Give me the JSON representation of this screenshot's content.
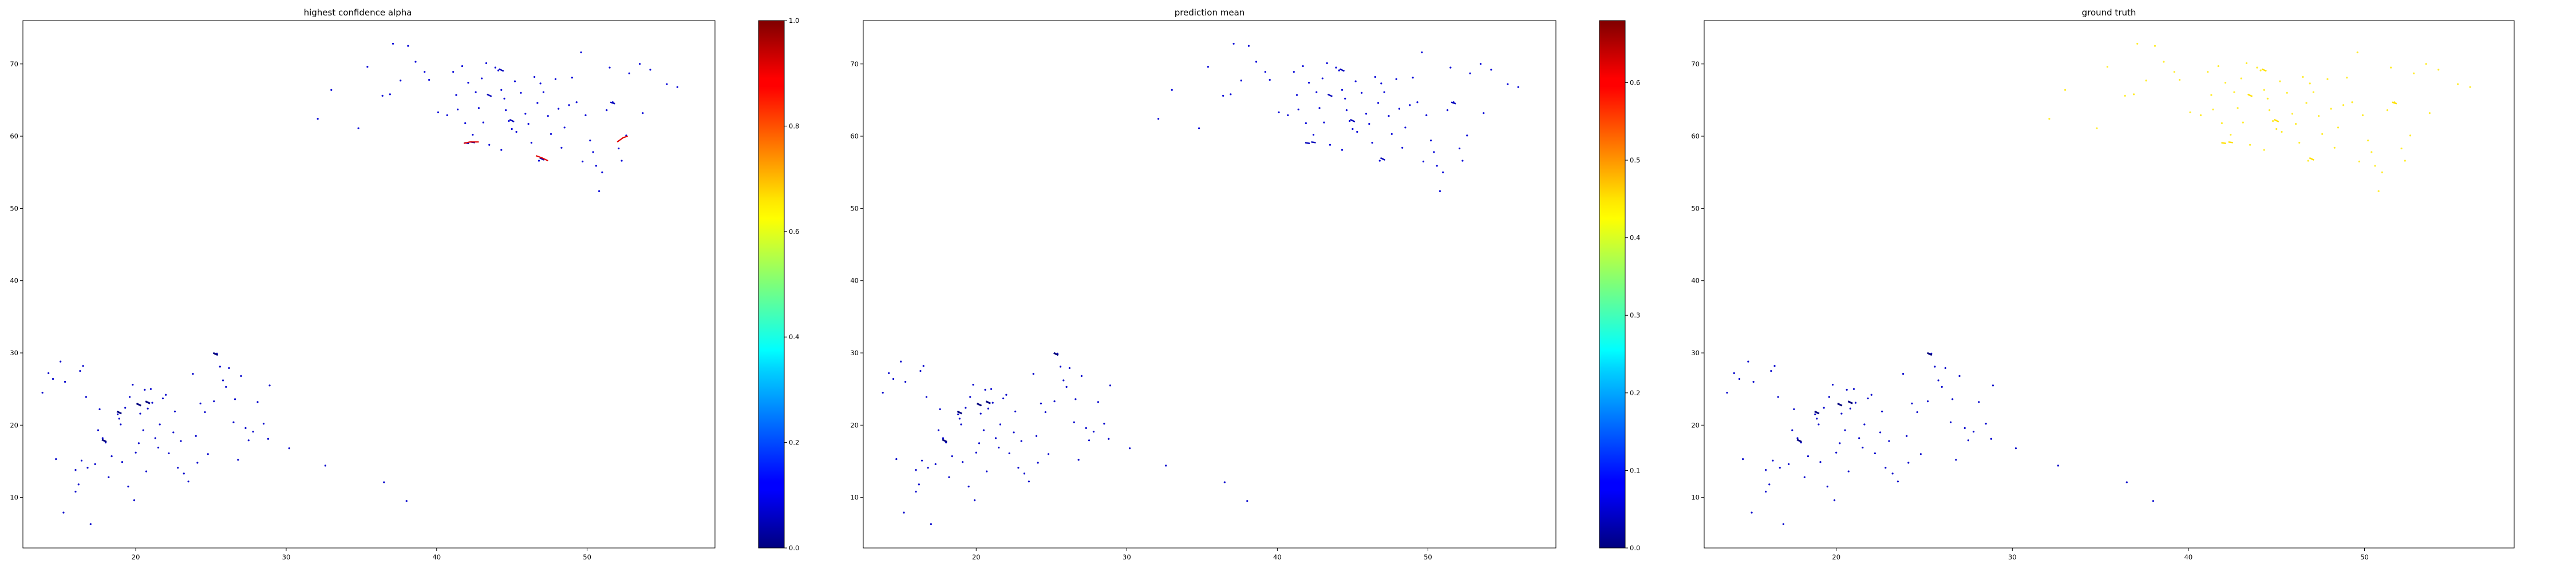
{
  "chart_data": [
    {
      "type": "scatter",
      "title": "highest confidence alpha",
      "xlabel": "",
      "ylabel": "",
      "xlim": [
        12.5,
        58.5
      ],
      "ylim": [
        3,
        76
      ],
      "xticks": [
        20,
        30,
        40,
        50
      ],
      "yticks": [
        10,
        20,
        30,
        40,
        50,
        60,
        70
      ],
      "colormap": "jet",
      "color_mode": "alpha",
      "colorbar": {
        "vmin": 0.0,
        "vmax": 1.0,
        "ticks": [
          "0.0",
          "0.2",
          "0.4",
          "0.6",
          "0.8",
          "1.0"
        ]
      }
    },
    {
      "type": "scatter",
      "title": "prediction mean",
      "xlabel": "",
      "ylabel": "",
      "xlim": [
        12.5,
        58.5
      ],
      "ylim": [
        3,
        76
      ],
      "xticks": [
        20,
        30,
        40,
        50
      ],
      "yticks": [
        10,
        20,
        30,
        40,
        50,
        60,
        70
      ],
      "colormap": "jet",
      "color_mode": "mean",
      "colorbar": {
        "vmin": 0.0,
        "vmax": 0.68,
        "ticks": [
          "0.0",
          "0.1",
          "0.2",
          "0.3",
          "0.4",
          "0.5",
          "0.6"
        ]
      }
    },
    {
      "type": "scatter",
      "title": "ground truth",
      "xlabel": "",
      "ylabel": "",
      "xlim": [
        12.5,
        58.5
      ],
      "ylim": [
        3,
        76
      ],
      "xticks": [
        20,
        30,
        40,
        50
      ],
      "yticks": [
        10,
        20,
        30,
        40,
        50,
        60,
        70
      ],
      "colormap": "jet",
      "color_mode": "truth"
    }
  ],
  "points": {
    "lower_cluster": [
      [
        13.8,
        24.5
      ],
      [
        14.2,
        27.2
      ],
      [
        14.5,
        26.4
      ],
      [
        14.7,
        15.3
      ],
      [
        15.0,
        28.8
      ],
      [
        15.3,
        26.0
      ],
      [
        15.2,
        7.9
      ],
      [
        16.0,
        10.8
      ],
      [
        16.2,
        11.8
      ],
      [
        16.0,
        13.8
      ],
      [
        16.4,
        15.1
      ],
      [
        16.5,
        28.2
      ],
      [
        16.3,
        27.5
      ],
      [
        16.7,
        23.9
      ],
      [
        16.8,
        14.1
      ],
      [
        17.0,
        6.3
      ],
      [
        17.3,
        14.6
      ],
      [
        17.6,
        22.2
      ],
      [
        17.8,
        18.2
      ],
      [
        18.0,
        17.6
      ],
      [
        18.2,
        12.8
      ],
      [
        18.4,
        15.7
      ],
      [
        18.8,
        21.5
      ],
      [
        18.9,
        20.9
      ],
      [
        19.0,
        20.1
      ],
      [
        19.3,
        22.4
      ],
      [
        19.5,
        11.5
      ],
      [
        19.6,
        23.9
      ],
      [
        19.8,
        25.6
      ],
      [
        19.9,
        9.6
      ],
      [
        20.0,
        16.2
      ],
      [
        20.2,
        17.5
      ],
      [
        20.3,
        21.6
      ],
      [
        20.5,
        19.3
      ],
      [
        20.6,
        24.9
      ],
      [
        20.7,
        13.6
      ],
      [
        20.8,
        22.3
      ],
      [
        21.0,
        25.0
      ],
      [
        21.1,
        23.1
      ],
      [
        21.3,
        18.2
      ],
      [
        21.5,
        16.9
      ],
      [
        21.6,
        20.1
      ],
      [
        21.8,
        23.7
      ],
      [
        22.0,
        24.2
      ],
      [
        22.2,
        16.1
      ],
      [
        22.5,
        19.0
      ],
      [
        22.8,
        14.1
      ],
      [
        23.0,
        17.8
      ],
      [
        23.2,
        13.3
      ],
      [
        23.5,
        12.2
      ],
      [
        23.8,
        27.1
      ],
      [
        24.0,
        18.5
      ],
      [
        24.3,
        23.0
      ],
      [
        24.6,
        21.8
      ],
      [
        24.8,
        16.0
      ],
      [
        25.2,
        23.3
      ],
      [
        25.4,
        29.9
      ],
      [
        25.6,
        28.1
      ],
      [
        25.8,
        26.2
      ],
      [
        26.0,
        25.3
      ],
      [
        26.2,
        27.9
      ],
      [
        26.5,
        20.4
      ],
      [
        26.6,
        23.6
      ],
      [
        26.8,
        15.2
      ],
      [
        27.0,
        26.8
      ],
      [
        27.3,
        19.6
      ],
      [
        27.5,
        17.9
      ],
      [
        27.8,
        19.1
      ],
      [
        28.1,
        23.2
      ],
      [
        28.5,
        20.2
      ],
      [
        28.9,
        25.5
      ],
      [
        28.8,
        18.1
      ],
      [
        30.2,
        16.8
      ],
      [
        32.6,
        14.4
      ],
      [
        36.5,
        12.1
      ],
      [
        38.0,
        9.5
      ],
      [
        17.5,
        19.3
      ],
      [
        19.1,
        14.9
      ],
      [
        22.6,
        21.9
      ],
      [
        24.1,
        14.8
      ]
    ],
    "upper_cluster": [
      [
        32.1,
        62.4
      ],
      [
        33.0,
        66.4
      ],
      [
        34.8,
        61.1
      ],
      [
        35.4,
        69.6
      ],
      [
        36.4,
        65.6
      ],
      [
        36.9,
        65.8
      ],
      [
        37.1,
        72.8
      ],
      [
        37.6,
        67.7
      ],
      [
        38.1,
        72.5
      ],
      [
        38.6,
        70.3
      ],
      [
        39.2,
        68.9
      ],
      [
        39.5,
        67.8
      ],
      [
        40.1,
        63.3
      ],
      [
        40.7,
        62.9
      ],
      [
        41.1,
        68.9
      ],
      [
        41.3,
        65.7
      ],
      [
        41.4,
        63.7
      ],
      [
        41.7,
        69.7
      ],
      [
        41.9,
        61.8
      ],
      [
        42.1,
        67.4
      ],
      [
        42.4,
        60.2
      ],
      [
        42.6,
        66.1
      ],
      [
        42.8,
        63.9
      ],
      [
        43.0,
        68.0
      ],
      [
        43.3,
        70.1
      ],
      [
        43.5,
        58.8
      ],
      [
        43.9,
        69.5
      ],
      [
        44.1,
        69.1
      ],
      [
        44.3,
        66.4
      ],
      [
        44.5,
        65.2
      ],
      [
        44.6,
        63.6
      ],
      [
        44.8,
        62.1
      ],
      [
        45.0,
        61.0
      ],
      [
        45.2,
        67.6
      ],
      [
        45.3,
        60.6
      ],
      [
        45.6,
        66.0
      ],
      [
        45.9,
        63.1
      ],
      [
        46.1,
        61.7
      ],
      [
        46.3,
        59.1
      ],
      [
        46.5,
        68.2
      ],
      [
        46.7,
        64.6
      ],
      [
        46.9,
        67.3
      ],
      [
        47.1,
        66.1
      ],
      [
        47.4,
        62.8
      ],
      [
        47.6,
        60.3
      ],
      [
        47.9,
        67.9
      ],
      [
        48.1,
        63.8
      ],
      [
        48.3,
        58.4
      ],
      [
        48.5,
        61.2
      ],
      [
        48.8,
        64.3
      ],
      [
        49.0,
        68.1
      ],
      [
        49.3,
        64.7
      ],
      [
        49.6,
        71.6
      ],
      [
        49.7,
        56.5
      ],
      [
        49.9,
        62.9
      ],
      [
        50.2,
        59.4
      ],
      [
        50.4,
        57.8
      ],
      [
        50.6,
        55.9
      ],
      [
        50.8,
        52.4
      ],
      [
        51.0,
        55.0
      ],
      [
        51.3,
        63.6
      ],
      [
        51.5,
        69.5
      ],
      [
        51.7,
        64.7
      ],
      [
        52.1,
        58.3
      ],
      [
        52.3,
        56.6
      ],
      [
        52.6,
        60.1
      ],
      [
        52.8,
        68.7
      ],
      [
        53.5,
        70.0
      ],
      [
        53.7,
        63.2
      ],
      [
        54.2,
        69.2
      ],
      [
        55.3,
        67.2
      ],
      [
        56.0,
        66.8
      ],
      [
        43.1,
        61.9
      ],
      [
        46.8,
        56.6
      ],
      [
        44.3,
        58.1
      ]
    ],
    "lower_bars": [
      [
        17.9,
        18.0,
        17.7
      ],
      [
        20.8,
        23.3,
        23.0
      ],
      [
        25.3,
        30.0,
        29.7
      ],
      [
        18.9,
        21.9,
        21.6
      ],
      [
        20.2,
        23.0,
        22.7
      ]
    ],
    "upper_bars": [
      [
        42.0,
        59.1,
        59.0
      ],
      [
        42.4,
        59.2,
        59.1
      ],
      [
        47.0,
        57.0,
        56.7
      ],
      [
        44.3,
        69.3,
        69.0
      ],
      [
        51.7,
        64.7,
        64.5
      ],
      [
        45.0,
        62.3,
        62.0
      ],
      [
        43.5,
        65.8,
        65.5
      ]
    ],
    "upper_red_curves": [
      [
        [
          41.8,
          59.0
        ],
        [
          42.2,
          59.2
        ],
        [
          42.8,
          59.2
        ]
      ],
      [
        [
          46.6,
          57.3
        ],
        [
          47.0,
          57.0
        ],
        [
          47.4,
          56.6
        ]
      ],
      [
        [
          52.0,
          59.2
        ],
        [
          52.4,
          59.8
        ],
        [
          52.7,
          60.0
        ]
      ]
    ]
  }
}
